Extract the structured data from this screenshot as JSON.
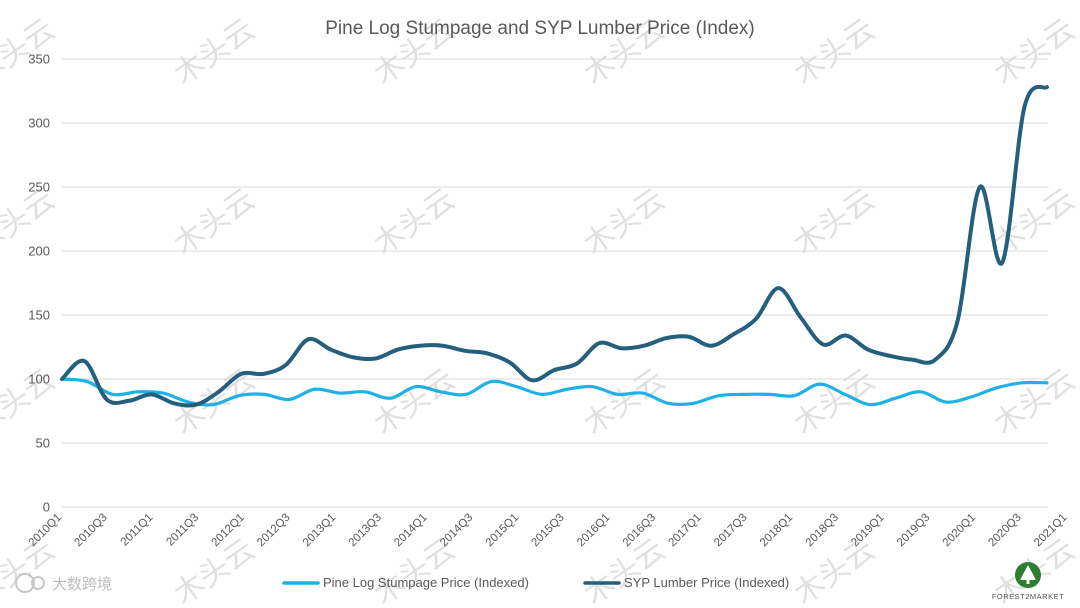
{
  "chart_data": {
    "type": "line",
    "title": "Pine Log Stumpage and SYP Lumber Price (Index)",
    "xlabel": "",
    "ylabel": "",
    "ylim": [
      0,
      350
    ],
    "yticks": [
      0,
      50,
      100,
      150,
      200,
      250,
      300,
      350
    ],
    "x_tick_labels": [
      "2010Q1",
      "2010Q3",
      "2011Q1",
      "2011Q3",
      "2012Q1",
      "2012Q3",
      "2013Q1",
      "2013Q3",
      "2014Q1",
      "2014Q3",
      "2015Q1",
      "2015Q3",
      "2016Q1",
      "2016Q3",
      "2017Q1",
      "2017Q3",
      "2018Q1",
      "2018Q3",
      "2019Q1",
      "2019Q3",
      "2020Q1",
      "2020Q3",
      "2021Q1"
    ],
    "grid": true,
    "legend_position": "bottom",
    "series": [
      {
        "name": "Pine Log Stumpage Price (Indexed)",
        "color": "#1fb1e6",
        "values": [
          100,
          98,
          88,
          90,
          89,
          82,
          80,
          87,
          88,
          84,
          92,
          89,
          90,
          85,
          94,
          90,
          88,
          98,
          94,
          88,
          92,
          94,
          88,
          89,
          81,
          81,
          87,
          88,
          88,
          87,
          96,
          88,
          80,
          85,
          90,
          82,
          86,
          93,
          97,
          97
        ]
      },
      {
        "name": "SYP Lumber Price (Indexed)",
        "color": "#245f7e",
        "values": [
          100,
          114,
          84,
          83,
          88,
          81,
          80,
          90,
          104,
          104,
          111,
          131,
          123,
          117,
          116,
          123,
          126,
          126,
          122,
          120,
          113,
          99,
          107,
          112,
          128,
          124,
          126,
          132,
          133,
          126,
          135,
          147,
          171,
          148,
          127,
          134,
          123,
          118,
          115,
          115,
          145,
          250,
          191,
          313,
          328
        ]
      }
    ]
  },
  "watermark": {
    "text": "木头云",
    "brand": "大数跨境"
  },
  "logo": {
    "text": "FOREST2MARKET"
  }
}
